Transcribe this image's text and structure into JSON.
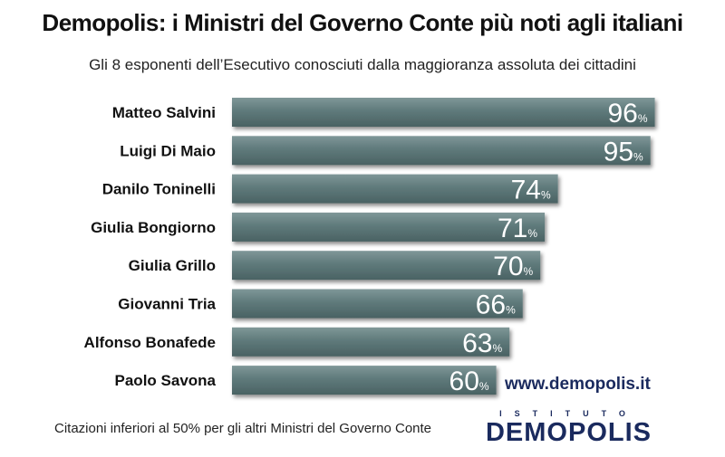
{
  "header": {
    "title": "Demopolis: i Ministri del Governo Conte più noti agli italiani",
    "subtitle": "Gli 8 esponenti dell’Esecutivo conosciuti dalla maggioranza assoluta dei cittadini"
  },
  "chart_data": {
    "type": "bar",
    "orientation": "horizontal",
    "categories": [
      "Matteo Salvini",
      "Luigi Di Maio",
      "Danilo Toninelli",
      "Giulia Bongiorno",
      "Giulia Grillo",
      "Giovanni Tria",
      "Alfonso Bonafede",
      "Paolo Savona"
    ],
    "values": [
      96,
      95,
      74,
      71,
      70,
      66,
      63,
      60
    ],
    "unit": "%",
    "bar_color": "#5f7a7b",
    "value_label_color": "#ffffff"
  },
  "footer": {
    "website": "www.demopolis.it",
    "note": "Citazioni inferiori al 50% per gli altri Ministri del Governo Conte",
    "logo_top": "ISTITUTO",
    "logo_main": "DEMOPOLIS"
  }
}
